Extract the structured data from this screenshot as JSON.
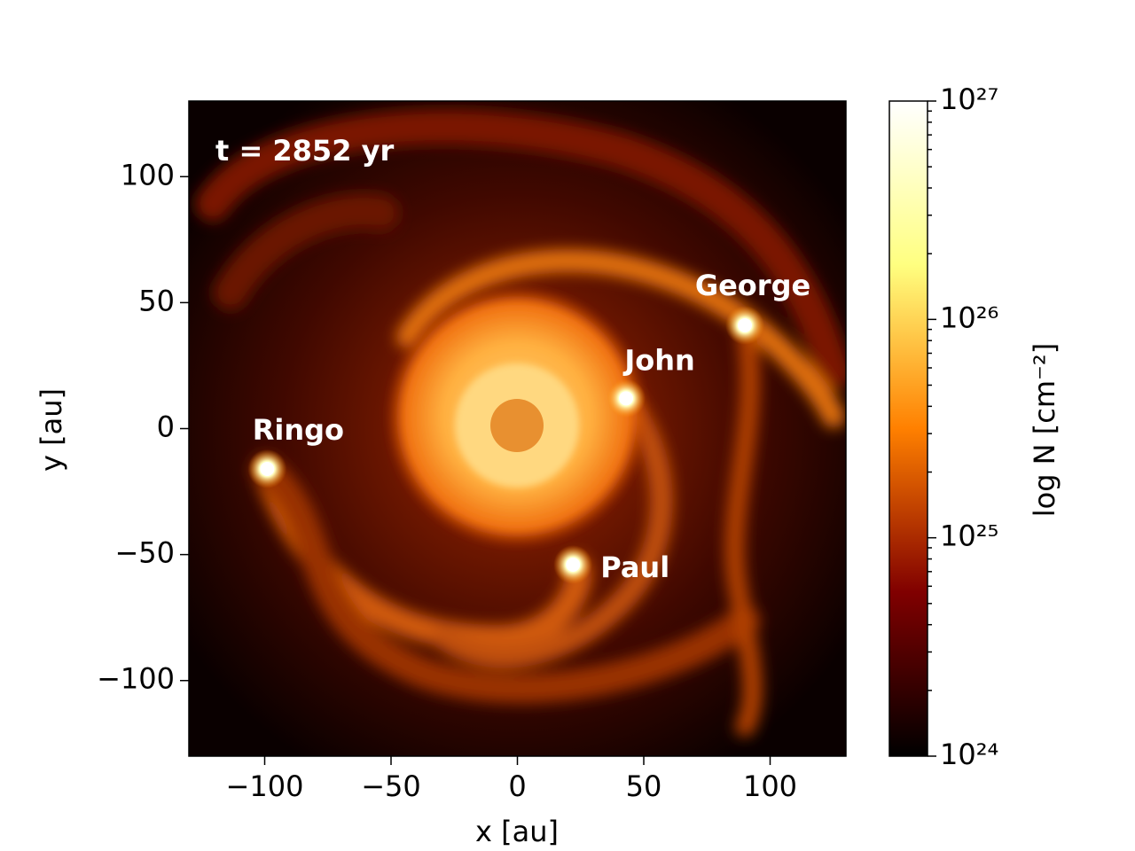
{
  "chart_data": {
    "type": "image",
    "annotation": "t = 2852 yr",
    "xlabel": "x [au]",
    "ylabel": "y [au]",
    "xlim": [
      -130,
      130
    ],
    "ylim": [
      -130,
      130
    ],
    "xticks": [
      {
        "value": -100,
        "label": "−100"
      },
      {
        "value": -50,
        "label": "−50"
      },
      0,
      50,
      100
    ],
    "yticks": [
      {
        "value": -100,
        "label": "−100"
      },
      {
        "value": -50,
        "label": "−50"
      },
      0,
      50,
      100
    ],
    "stars": [
      {
        "name": "John",
        "x": 43,
        "y": 12
      },
      {
        "name": "George",
        "x": 90,
        "y": 41
      },
      {
        "name": "Ringo",
        "x": -99,
        "y": -16
      },
      {
        "name": "Paul",
        "x": 22,
        "y": -54
      }
    ],
    "colorbar": {
      "label": "log N [cm⁻²]",
      "scale": "log",
      "lim": [
        1e+24,
        1e+27
      ],
      "ticks": [
        {
          "value": 1e+24,
          "label": "10²⁴"
        },
        {
          "value": 1e+25,
          "label": "10²⁵"
        },
        {
          "value": 1e+26,
          "label": "10²⁶"
        },
        {
          "value": 1e+27,
          "label": "10²⁷"
        }
      ],
      "minor_ticks": [
        2e+24,
        3e+24,
        4e+24,
        5e+24,
        6e+24,
        7e+24,
        8e+24,
        9e+24,
        2e+25,
        3e+25,
        4e+25,
        5e+25,
        6e+25,
        7e+25,
        8e+25,
        9e+25,
        2e+26,
        3e+26,
        4e+26,
        5e+26,
        6e+26,
        7e+26,
        8e+26,
        9e+26
      ],
      "colormap": "afmhot",
      "colors": [
        "#000000",
        "#800000",
        "#ff8000",
        "#ffff80",
        "#ffffff"
      ]
    }
  }
}
